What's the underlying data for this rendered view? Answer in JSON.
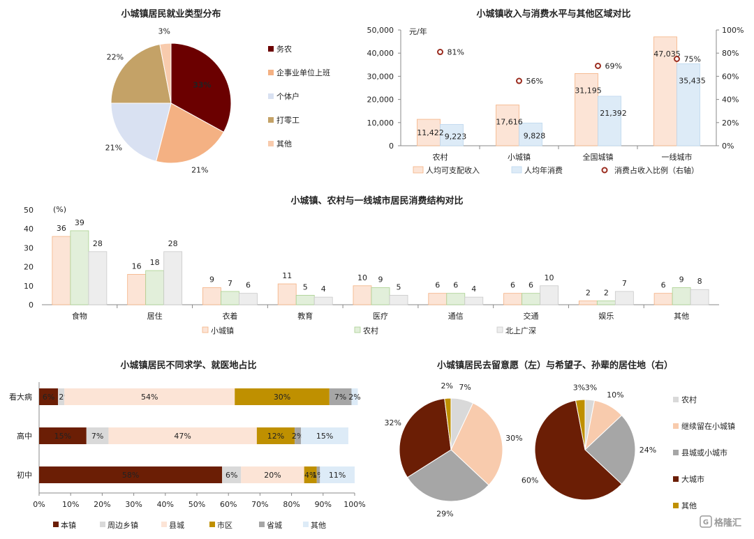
{
  "watermark": "格隆汇",
  "chart_data": [
    {
      "type": "pie",
      "title": "小城镇居民就业类型分布",
      "categories": [
        "务农",
        "企事业单位上班",
        "个体户",
        "打零工",
        "其他"
      ],
      "values": [
        33,
        21,
        21,
        22,
        3
      ],
      "value_labels": [
        "33%",
        "21%",
        "21%",
        "22%",
        "3%"
      ],
      "colors": [
        "#6b0000",
        "#f4b183",
        "#d9e1f2",
        "#c4a267",
        "#f8cbad"
      ],
      "legend_position": "right"
    },
    {
      "type": "bar",
      "title": "小城镇收入与消费水平与其他区域对比",
      "categories": [
        "农村",
        "小城镇",
        "全国城镇",
        "一线城市"
      ],
      "ylabel": "元/年",
      "ylim": [
        0,
        50000
      ],
      "y_ticks": [
        "0",
        "10,000",
        "20,000",
        "30,000",
        "40,000",
        "50,000"
      ],
      "y2lim": [
        0,
        100
      ],
      "y2_ticks": [
        "0%",
        "20%",
        "40%",
        "60%",
        "80%",
        "100%"
      ],
      "series": [
        {
          "name": "人均可支配收入",
          "values": [
            11422,
            17616,
            31195,
            47035
          ],
          "labels": [
            "11,422",
            "17,616",
            "31,195",
            "47,035"
          ],
          "color": "#fce4d6",
          "stroke": "#f4b183"
        },
        {
          "name": "人均年消费",
          "values": [
            9223,
            9828,
            21392,
            35435
          ],
          "labels": [
            "9,223",
            "9,828",
            "21,392",
            "35,435"
          ],
          "color": "#ddebf7",
          "stroke": "#bdd7ee"
        },
        {
          "name": "消费占收入比例（右轴）",
          "type": "scatter",
          "axis": "right",
          "values": [
            81,
            56,
            69,
            75
          ],
          "labels": [
            "81%",
            "56%",
            "69%",
            "75%"
          ],
          "color": "#9b2d20"
        }
      ],
      "legend_position": "bottom"
    },
    {
      "type": "bar",
      "title": "小城镇、农村与一线城市居民消费结构对比",
      "ylabel": "(%)",
      "ylim": [
        0,
        50
      ],
      "y_ticks": [
        "0",
        "10",
        "20",
        "30",
        "40",
        "50"
      ],
      "categories": [
        "食物",
        "居住",
        "衣着",
        "教育",
        "医疗",
        "通信",
        "交通",
        "娱乐",
        "其他"
      ],
      "series": [
        {
          "name": "小城镇",
          "values": [
            36,
            16,
            9,
            11,
            10,
            6,
            6,
            2,
            6
          ],
          "color": "#fce4d6",
          "stroke": "#f4b183"
        },
        {
          "name": "农村",
          "values": [
            39,
            18,
            7,
            5,
            9,
            6,
            6,
            2,
            9
          ],
          "color": "#e2efda",
          "stroke": "#a9d08e"
        },
        {
          "name": "北上广深",
          "values": [
            28,
            28,
            6,
            4,
            5,
            4,
            10,
            7,
            8
          ],
          "color": "#ededed",
          "stroke": "#c9c9c9"
        }
      ],
      "legend_position": "bottom"
    },
    {
      "type": "bar",
      "orientation": "horizontal-stacked",
      "title": "小城镇居民不同求学、就医地占比",
      "categories": [
        "看大病",
        "高中",
        "初中"
      ],
      "x_ticks": [
        "0%",
        "10%",
        "20%",
        "30%",
        "40%",
        "50%",
        "60%",
        "70%",
        "80%",
        "90%",
        "100%"
      ],
      "xlim": [
        0,
        100
      ],
      "series": [
        {
          "name": "本镇",
          "values": [
            6,
            15,
            58
          ],
          "labels": [
            "6%",
            "15%",
            "58%"
          ],
          "color": "#6b1e05"
        },
        {
          "name": "周边乡镇",
          "values": [
            2,
            7,
            6
          ],
          "labels": [
            "2%",
            "7%",
            "6%"
          ],
          "color": "#d9d9d9"
        },
        {
          "name": "县城",
          "values": [
            54,
            47,
            20
          ],
          "labels": [
            "54%",
            "47%",
            "20%"
          ],
          "color": "#fce4d6"
        },
        {
          "name": "市区",
          "values": [
            30,
            12,
            4
          ],
          "labels": [
            "30%",
            "12%",
            "4%"
          ],
          "color": "#bf9000"
        },
        {
          "name": "省城",
          "values": [
            7,
            2,
            1
          ],
          "labels": [
            "7%",
            "2%",
            "1%"
          ],
          "color": "#a6a6a6"
        },
        {
          "name": "其他",
          "values": [
            2,
            15,
            11
          ],
          "labels": [
            "2%",
            "15%",
            "11%"
          ],
          "color": "#ddebf7"
        }
      ],
      "legend_position": "bottom"
    },
    {
      "type": "pie",
      "title": "小城镇居民去留意愿（左）与希望子、孙辈的居住地（右）",
      "categories": [
        "农村",
        "继续留在小城镇",
        "县城或小城市",
        "大城市",
        "其他"
      ],
      "colors": [
        "#d9d9d9",
        "#f8cbad",
        "#a6a6a6",
        "#6b1e05",
        "#bf9000"
      ],
      "pies": [
        {
          "values": [
            7,
            30,
            29,
            32,
            2
          ],
          "value_labels": [
            "7%",
            "30%",
            "29%",
            "32%",
            "2%"
          ]
        },
        {
          "values": [
            3,
            10,
            24,
            60,
            3
          ],
          "value_labels": [
            "3%",
            "10%",
            "24%",
            "60%",
            "3%"
          ]
        }
      ],
      "legend_position": "right"
    }
  ]
}
